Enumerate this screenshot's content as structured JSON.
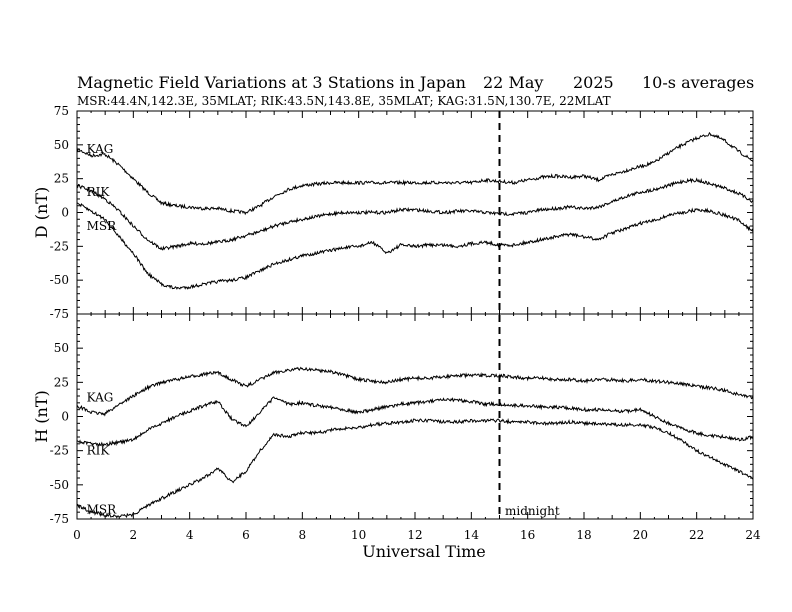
{
  "chart_data": {
    "type": "line",
    "title": "Magnetic Field Variations at 3 Stations in Japan",
    "date": "22 May",
    "year": "2025",
    "averaging": "10-s averages",
    "subtitle": "MSR:44.4N,142.3E, 35MLAT;  RIK:43.5N,143.8E, 35MLAT;  KAG:31.5N,130.7E, 22MLAT",
    "xlabel": "Universal Time",
    "xlim": [
      0,
      24
    ],
    "xticks": [
      "0",
      "2",
      "4",
      "6",
      "8",
      "10",
      "12",
      "14",
      "16",
      "18",
      "20",
      "22",
      "24"
    ],
    "midnight_ut": 15,
    "midnight_label": "midnight",
    "colors": {
      "line": "#000000",
      "frame": "#000000",
      "background": "#ffffff"
    },
    "panels": [
      {
        "ylabel": "D (nT)",
        "ylim": [
          -75,
          75
        ],
        "yticks": [
          "75",
          "50",
          "25",
          "0",
          "-25",
          "-50",
          "-75"
        ],
        "series": [
          {
            "name": "KAG",
            "label_pos": [
              0.2,
              47
            ],
            "x": [
              0,
              0.5,
              1,
              1.5,
              2,
              2.5,
              3,
              3.5,
              4,
              4.5,
              5,
              5.5,
              6,
              6.5,
              7,
              7.5,
              8,
              8.5,
              9,
              9.5,
              10,
              10.5,
              11,
              11.5,
              12,
              12.5,
              13,
              13.5,
              14,
              14.5,
              15,
              15.5,
              16,
              16.5,
              17,
              17.5,
              18,
              18.5,
              19,
              19.5,
              20,
              20.5,
              21,
              21.5,
              22,
              22.5,
              23,
              23.5,
              24
            ],
            "y": [
              47,
              42,
              43,
              35,
              25,
              15,
              7,
              5,
              4,
              3,
              3,
              1,
              0,
              5,
              12,
              17,
              20,
              21,
              22,
              22,
              22,
              22,
              22,
              22,
              22,
              22,
              22,
              22,
              22,
              24,
              23,
              22,
              24,
              26,
              27,
              26,
              27,
              24,
              28,
              31,
              34,
              37,
              44,
              50,
              55,
              58,
              53,
              45,
              38
            ]
          },
          {
            "name": "RIK",
            "label_pos": [
              0.2,
              15
            ],
            "x": [
              0,
              0.5,
              1,
              1.5,
              2,
              2.5,
              3,
              3.5,
              4,
              4.5,
              5,
              5.5,
              6,
              6.5,
              7,
              7.5,
              8,
              8.5,
              9,
              9.5,
              10,
              10.5,
              11,
              11.5,
              12,
              12.5,
              13,
              13.5,
              14,
              14.5,
              15,
              15.5,
              16,
              16.5,
              17,
              17.5,
              18,
              18.5,
              19,
              19.5,
              20,
              20.5,
              21,
              21.5,
              22,
              22.5,
              23,
              23.5,
              24
            ],
            "y": [
              20,
              16,
              10,
              1,
              -10,
              -20,
              -27,
              -25,
              -23,
              -23,
              -22,
              -20,
              -17,
              -14,
              -10,
              -7,
              -5,
              -3,
              -1,
              0,
              0,
              0,
              0,
              2,
              2,
              1,
              0,
              1,
              1,
              0,
              -1,
              -1,
              0,
              2,
              3,
              4,
              3,
              4,
              8,
              12,
              15,
              17,
              20,
              23,
              24,
              21,
              18,
              14,
              8
            ]
          },
          {
            "name": "MSR",
            "label_pos": [
              0.2,
              -10
            ],
            "x": [
              0,
              0.5,
              1,
              1.5,
              2,
              2.5,
              3,
              3.5,
              4,
              4.5,
              5,
              5.5,
              6,
              6.5,
              7,
              7.5,
              8,
              8.5,
              9,
              9.5,
              10,
              10.5,
              11,
              11.5,
              12,
              12.5,
              13,
              13.5,
              14,
              14.5,
              15,
              15.5,
              16,
              16.5,
              17,
              17.5,
              18,
              18.5,
              19,
              19.5,
              20,
              20.5,
              21,
              21.5,
              22,
              22.5,
              23,
              23.5,
              24
            ],
            "y": [
              7,
              1,
              -5,
              -18,
              -30,
              -45,
              -53,
              -56,
              -55,
              -53,
              -51,
              -50,
              -48,
              -43,
              -38,
              -35,
              -32,
              -30,
              -28,
              -26,
              -25,
              -22,
              -30,
              -24,
              -25,
              -24,
              -24,
              -25,
              -23,
              -22,
              -24,
              -24,
              -22,
              -20,
              -18,
              -16,
              -18,
              -20,
              -15,
              -12,
              -8,
              -6,
              -2,
              0,
              2,
              1,
              -2,
              -6,
              -14
            ]
          }
        ]
      },
      {
        "ylabel": "H (nT)",
        "ylim": [
          -75,
          75
        ],
        "yticks": [
          "75",
          "50",
          "25",
          "0",
          "-25",
          "-50",
          "-75"
        ],
        "series": [
          {
            "name": "KAG",
            "label_pos": [
              0.2,
              14
            ],
            "x": [
              0,
              0.5,
              1,
              1.5,
              2,
              2.5,
              3,
              3.5,
              4,
              4.5,
              5,
              5.5,
              6,
              6.5,
              7,
              7.5,
              8,
              8.5,
              9,
              9.5,
              10,
              10.5,
              11,
              11.5,
              12,
              12.5,
              13,
              13.5,
              14,
              14.5,
              15,
              15.5,
              16,
              16.5,
              17,
              17.5,
              18,
              18.5,
              19,
              19.5,
              20,
              20.5,
              21,
              21.5,
              22,
              22.5,
              23,
              23.5,
              24
            ],
            "y": [
              8,
              3,
              2,
              9,
              15,
              21,
              25,
              27,
              29,
              31,
              32,
              27,
              22,
              27,
              32,
              34,
              35,
              34,
              33,
              30,
              27,
              26,
              25,
              27,
              28,
              28,
              29,
              30,
              30,
              30,
              30,
              29,
              28,
              28,
              27,
              27,
              26,
              27,
              27,
              26,
              27,
              26,
              25,
              24,
              22,
              21,
              19,
              16,
              14
            ]
          },
          {
            "name": "RIK",
            "label_pos": [
              0.2,
              -25
            ],
            "x": [
              0,
              0.5,
              1,
              1.5,
              2,
              2.5,
              3,
              3.5,
              4,
              4.5,
              5,
              5.5,
              6,
              6.5,
              7,
              7.5,
              8,
              8.5,
              9,
              9.5,
              10,
              10.5,
              11,
              11.5,
              12,
              12.5,
              13,
              13.5,
              14,
              14.5,
              15,
              15.5,
              16,
              16.5,
              17,
              17.5,
              18,
              18.5,
              19,
              19.5,
              20,
              20.5,
              21,
              21.5,
              22,
              22.5,
              23,
              23.5,
              24
            ],
            "y": [
              -18,
              -20,
              -20,
              -19,
              -17,
              -10,
              -5,
              0,
              4,
              8,
              11,
              -2,
              -7,
              3,
              14,
              9,
              10,
              8,
              7,
              5,
              3,
              5,
              7,
              9,
              10,
              11,
              12,
              12,
              11,
              9,
              9,
              8,
              8,
              7,
              7,
              6,
              5,
              5,
              4,
              4,
              5,
              0,
              -5,
              -9,
              -12,
              -14,
              -15,
              -17,
              -15
            ]
          },
          {
            "name": "MSR",
            "label_pos": [
              0.2,
              -68
            ],
            "x": [
              0,
              0.5,
              1,
              1.5,
              2,
              2.5,
              3,
              3.5,
              4,
              4.5,
              5,
              5.5,
              6,
              6.5,
              7,
              7.5,
              8,
              8.5,
              9,
              9.5,
              10,
              10.5,
              11,
              11.5,
              12,
              12.5,
              13,
              13.5,
              14,
              14.5,
              15,
              15.5,
              16,
              16.5,
              17,
              17.5,
              18,
              18.5,
              19,
              19.5,
              20,
              20.5,
              21,
              21.5,
              22,
              22.5,
              23,
              23.5,
              24
            ],
            "y": [
              -65,
              -70,
              -72,
              -73,
              -72,
              -65,
              -60,
              -55,
              -50,
              -45,
              -38,
              -48,
              -40,
              -25,
              -13,
              -15,
              -12,
              -12,
              -10,
              -9,
              -8,
              -6,
              -5,
              -4,
              -3,
              -3,
              -4,
              -4,
              -3,
              -3,
              -3,
              -4,
              -4,
              -5,
              -5,
              -4,
              -5,
              -5,
              -6,
              -6,
              -6,
              -8,
              -12,
              -18,
              -25,
              -30,
              -35,
              -40,
              -45
            ]
          }
        ]
      }
    ]
  }
}
